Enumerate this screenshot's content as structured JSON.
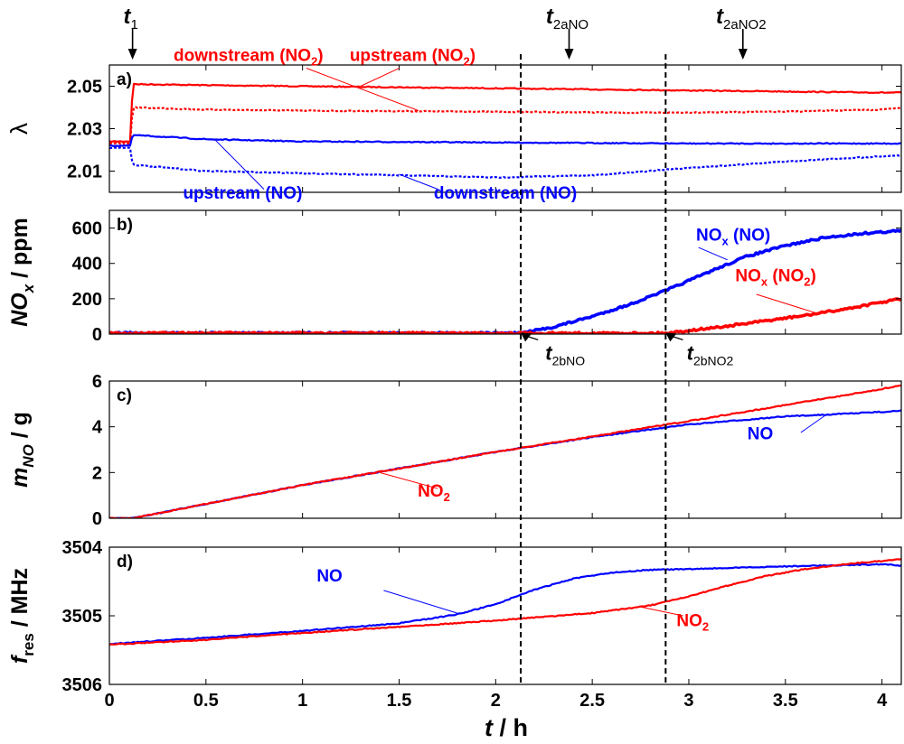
{
  "figure": {
    "xlabel_main": "t",
    "xlabel_unit": " / h",
    "xticks": [
      "0",
      "0.5",
      "1",
      "1.5",
      "2",
      "2.5",
      "3",
      "3.5",
      "4"
    ],
    "xlim": [
      0,
      4.1
    ],
    "colors": {
      "red": "#ff0000",
      "blue": "#0000ff",
      "black": "#000000"
    },
    "markers": [
      {
        "name": "t1-marker",
        "base": "t",
        "sub": "1",
        "x": 0.12
      },
      {
        "name": "t2aNO-marker",
        "base": "t",
        "sub": "2aNO",
        "x": 2.38
      },
      {
        "name": "t2aNO2-marker",
        "base": "t",
        "sub": "2aNO2",
        "x": 3.28
      }
    ],
    "dashed_lines": [
      2.13,
      2.88
    ]
  },
  "chart_data": [
    {
      "type": "line",
      "panel_label": "a)",
      "ylabel": "λ",
      "ylim": [
        2.0,
        2.06
      ],
      "yticks": [
        2.01,
        2.03,
        2.05
      ],
      "ytick_labels": [
        "2.01",
        "2.03",
        "2.05"
      ],
      "series": [
        {
          "name": "upstream (NO2)",
          "color": "red",
          "style": "solid",
          "x": [
            0,
            0.11,
            0.12,
            0.5,
            1,
            2,
            3,
            4,
            4.1
          ],
          "y": [
            2.024,
            2.024,
            2.051,
            2.0505,
            2.05,
            2.049,
            2.048,
            2.047,
            2.047
          ]
        },
        {
          "name": "downstream (NO2)",
          "color": "red",
          "style": "dotted",
          "x": [
            0,
            0.11,
            0.12,
            0.5,
            1,
            2,
            2.8,
            3.5,
            4,
            4.1
          ],
          "y": [
            2.023,
            2.023,
            2.04,
            2.039,
            2.0385,
            2.038,
            2.0375,
            2.038,
            2.039,
            2.04
          ]
        },
        {
          "name": "upstream (NO)",
          "color": "blue",
          "style": "solid",
          "x": [
            0,
            0.11,
            0.12,
            0.5,
            1,
            2,
            3,
            4,
            4.1
          ],
          "y": [
            2.022,
            2.022,
            2.027,
            2.025,
            2.024,
            2.0235,
            2.023,
            2.023,
            2.023
          ]
        },
        {
          "name": "downstream (NO)",
          "color": "blue",
          "style": "dotted",
          "x": [
            0,
            0.11,
            0.12,
            0.5,
            1,
            1.5,
            2,
            2.5,
            3,
            3.5,
            4,
            4.1
          ],
          "y": [
            2.021,
            2.021,
            2.013,
            2.01,
            2.009,
            2.008,
            2.007,
            2.008,
            2.0115,
            2.0145,
            2.017,
            2.0175
          ]
        }
      ],
      "annotations": [
        {
          "text": "downstream (NO",
          "sub": "2",
          "tail": ")",
          "color": "red",
          "tx": 0.72,
          "ty": 2.062,
          "ax": 1.6,
          "ay": 2.0385,
          "lx": 1.02,
          "ly": 2.0585
        },
        {
          "text": "upstream (NO",
          "sub": "2",
          "tail": ")",
          "color": "red",
          "tx": 1.57,
          "ty": 2.062,
          "ax": 1.3,
          "ay": 2.05,
          "lx": 1.5,
          "ly": 2.0585
        },
        {
          "text": "upstream (NO)",
          "color": "blue",
          "tx": 0.69,
          "ty": 1.997,
          "ax": 0.55,
          "ay": 2.0245,
          "lx": 0.8,
          "ly": 2.0015
        },
        {
          "text": "downstream (NO)",
          "color": "blue",
          "tx": 2.05,
          "ty": 1.997,
          "ax": 1.5,
          "ay": 2.0085,
          "lx": 1.7,
          "ly": 2.0015
        }
      ]
    },
    {
      "type": "line",
      "panel_label": "b)",
      "ylabel": "NO",
      "ylabel_sub": "x",
      "ylabel_unit": " / ppm",
      "ylim": [
        0,
        700
      ],
      "yticks": [
        0,
        200,
        400,
        600
      ],
      "ytick_labels": [
        "0",
        "200",
        "400",
        "600"
      ],
      "series": [
        {
          "name": "NOx (NO)",
          "color": "blue",
          "style": "thick",
          "x": [
            0,
            2.13,
            2.3,
            2.5,
            2.7,
            2.9,
            3.1,
            3.3,
            3.5,
            3.7,
            3.9,
            4.1
          ],
          "y": [
            5,
            5,
            40,
            100,
            170,
            255,
            350,
            440,
            500,
            545,
            570,
            585
          ]
        },
        {
          "name": "NOx (NO2)",
          "color": "red",
          "style": "thick",
          "x": [
            0,
            2.88,
            3.0,
            3.2,
            3.4,
            3.6,
            3.8,
            4.0,
            4.1
          ],
          "y": [
            5,
            5,
            20,
            45,
            75,
            105,
            140,
            180,
            200
          ]
        }
      ],
      "annotations": [
        {
          "text": "NO",
          "sub": "x",
          "tail": " (NO)",
          "color": "blue",
          "tx": 3.23,
          "ty": 530,
          "ax": 3.2,
          "ay": 420,
          "lx": 3.05,
          "ly": 490
        },
        {
          "text": "NO",
          "sub": "x",
          "tail": " (NO",
          "sub2": "2",
          "tail2": ")",
          "color": "red",
          "tx": 3.45,
          "ty": 300,
          "ax": 3.68,
          "ay": 112,
          "lx": 3.35,
          "ly": 225
        }
      ],
      "pointers": [
        {
          "base": "t",
          "sub": "2bNO",
          "ax": 2.13,
          "ay": 8,
          "tx": 2.36,
          "ty": -145
        },
        {
          "base": "t",
          "sub": "2bNO2",
          "ax": 2.88,
          "ay": 8,
          "tx": 3.11,
          "ty": -145
        }
      ]
    },
    {
      "type": "line",
      "panel_label": "c)",
      "ylabel": "m",
      "ylabel_sub": "NO",
      "ylabel_unit": " / g",
      "ylim": [
        0,
        6
      ],
      "yticks": [
        0,
        2,
        4,
        6
      ],
      "ytick_labels": [
        "0",
        "2",
        "4",
        "6"
      ],
      "series": [
        {
          "name": "NO",
          "color": "blue",
          "style": "solid",
          "x": [
            0,
            0.12,
            1,
            2,
            2.5,
            3,
            3.5,
            4,
            4.1
          ],
          "y": [
            0,
            0,
            1.45,
            2.9,
            3.55,
            4.1,
            4.45,
            4.65,
            4.7
          ]
        },
        {
          "name": "NO2",
          "color": "red",
          "style": "solid",
          "x": [
            0,
            0.12,
            1,
            2,
            3,
            4,
            4.1
          ],
          "y": [
            0,
            0,
            1.45,
            2.9,
            4.25,
            5.65,
            5.8
          ]
        }
      ],
      "annotations": [
        {
          "text": "NO",
          "color": "blue",
          "tx": 3.37,
          "ty": 3.45,
          "ax": 3.72,
          "ay": 4.58,
          "lx": 3.58,
          "ly": 3.75
        },
        {
          "text": "NO",
          "sub": "2",
          "color": "red",
          "tx": 1.68,
          "ty": 0.95,
          "ax": 1.4,
          "ay": 2.0,
          "lx": 1.7,
          "ly": 1.3
        }
      ]
    },
    {
      "type": "line",
      "panel_label": "d)",
      "ylabel": "f",
      "ylabel_sub": "res",
      "ylabel_unit": " / MHz",
      "ylim": [
        3506,
        3504
      ],
      "yticks": [
        3504,
        3505,
        3506
      ],
      "ytick_labels": [
        "3504",
        "3505",
        "3506"
      ],
      "series": [
        {
          "name": "NO",
          "color": "blue",
          "style": "solid",
          "x": [
            0,
            0.5,
            1,
            1.5,
            1.8,
            2.0,
            2.2,
            2.4,
            2.6,
            2.8,
            3.0,
            3.5,
            4.0,
            4.1
          ],
          "y": [
            3505.41,
            3505.32,
            3505.22,
            3505.11,
            3504.98,
            3504.83,
            3504.62,
            3504.46,
            3504.37,
            3504.33,
            3504.32,
            3504.28,
            3504.25,
            3504.27
          ]
        },
        {
          "name": "NO2",
          "color": "red",
          "style": "solid",
          "x": [
            0,
            0.5,
            1,
            1.5,
            2,
            2.5,
            2.8,
            3.0,
            3.2,
            3.4,
            3.6,
            3.8,
            4.0,
            4.1
          ],
          "y": [
            3505.42,
            3505.35,
            3505.25,
            3505.16,
            3505.07,
            3504.96,
            3504.85,
            3504.72,
            3504.56,
            3504.42,
            3504.32,
            3504.25,
            3504.2,
            3504.17
          ]
        }
      ],
      "annotations": [
        {
          "text": "NO",
          "color": "blue",
          "tx": 1.14,
          "ty": 3504.5,
          "ax": 1.8,
          "ay": 3504.96,
          "lx": 1.42,
          "ly": 3504.63
        },
        {
          "text": "NO",
          "sub": "2",
          "color": "red",
          "tx": 3.02,
          "ty": 3505.15,
          "ax": 2.75,
          "ay": 3504.87,
          "lx": 2.97,
          "ly": 3505.0
        }
      ]
    }
  ]
}
